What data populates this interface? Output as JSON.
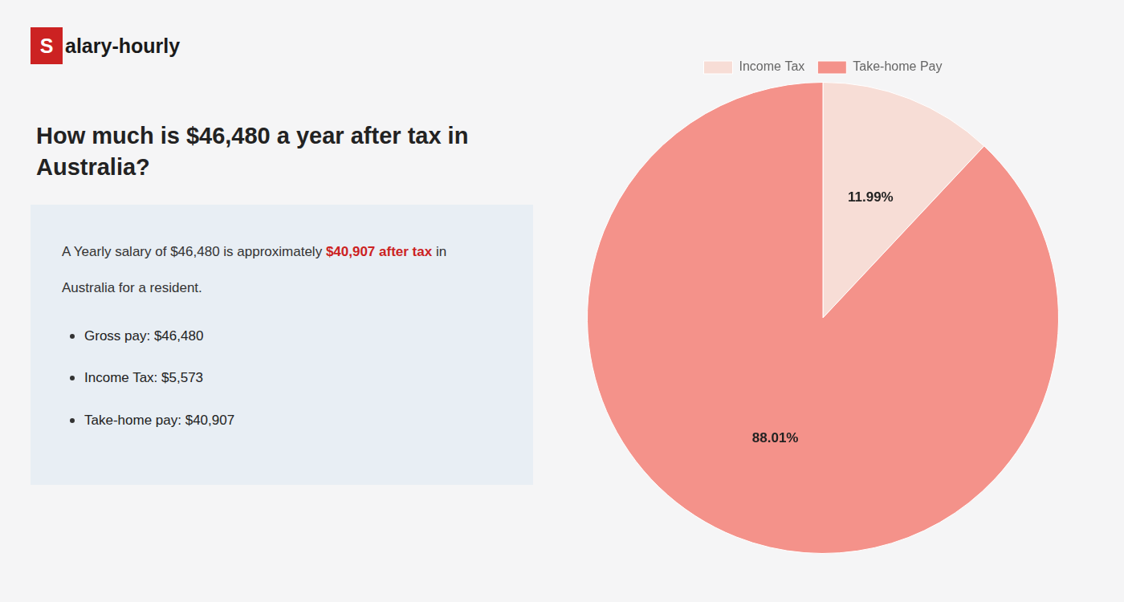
{
  "chart_data": {
    "type": "pie",
    "title": "How much is $46,480 a year after tax in\nAustralia?",
    "categories": [
      "Income Tax",
      "Take-home Pay"
    ],
    "values": [
      11.99,
      88.01
    ],
    "value_labels": [
      "11.99%",
      "88.01%"
    ],
    "colors": [
      "#f7ddd6",
      "#f4928a"
    ],
    "data_labels": true,
    "legend": "top",
    "annotations": [
      {
        "text": "S",
        "color": "#cc2222"
      },
      {
        "text": "alary-hourly"
      },
      {
        "text": "A Yearly salary of $46,480 is approximately "
      },
      {
        "text": "$40,907 after tax",
        "color": "#cc2222"
      },
      {
        "text": " in"
      },
      {
        "text": "Australia for a resident."
      },
      {
        "text": "Gross pay: $46,480"
      },
      {
        "text": "Income Tax: $5,573"
      },
      {
        "text": "Take-home pay: $40,907"
      }
    ]
  }
}
